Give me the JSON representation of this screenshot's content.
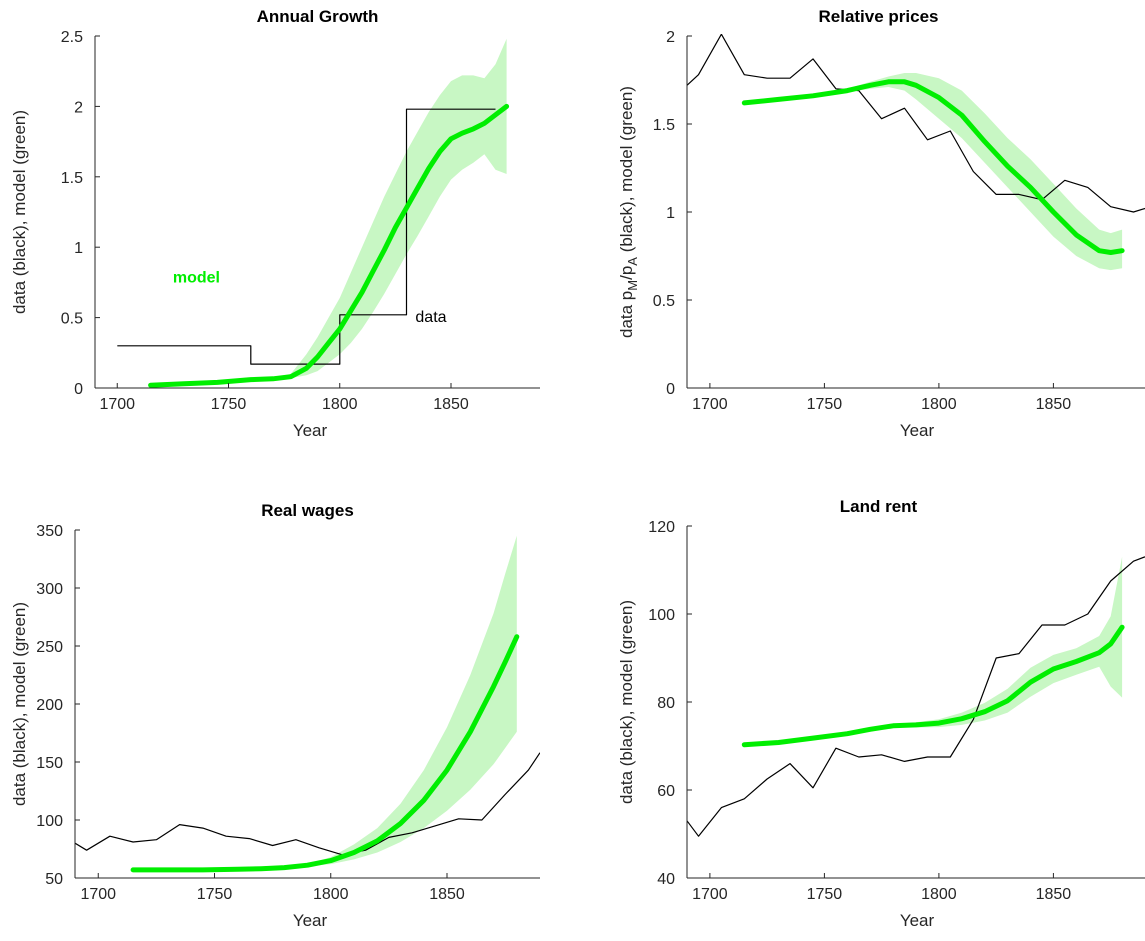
{
  "colors": {
    "model_line": "#00ee00",
    "model_band": "#c8f7c4",
    "data_line": "#000000",
    "axis": "#262626"
  },
  "chart_data": [
    {
      "type": "line",
      "title": "Annual Growth",
      "xlabel": "Year",
      "ylabel": "data (black), model (green)",
      "xlim": [
        1690,
        1890
      ],
      "ylim": [
        0,
        2.5
      ],
      "xticks": [
        1700,
        1750,
        1800,
        1850
      ],
      "xtick_labels": [
        "1700",
        "1750",
        "1800",
        "1850"
      ],
      "yticks": [
        0,
        0.5,
        1,
        1.5,
        2,
        2.5
      ],
      "ytick_labels": [
        "0",
        "0.5",
        "1",
        "1.5",
        "2",
        "2.5"
      ],
      "grid": false,
      "annotations": [
        {
          "text": "model",
          "x": 1725,
          "y": 0.75,
          "color": "#00ee00",
          "bold": true
        },
        {
          "text": "data",
          "x": 1834,
          "y": 0.47,
          "color": "#000000",
          "bold": false
        }
      ],
      "series": [
        {
          "name": "data",
          "style": "step",
          "x": [
            1700,
            1760,
            1760,
            1800,
            1800,
            1830,
            1830,
            1870
          ],
          "y": [
            0.3,
            0.3,
            0.17,
            0.17,
            0.52,
            0.52,
            1.98,
            1.98
          ]
        },
        {
          "name": "model",
          "style": "line",
          "x": [
            1715,
            1730,
            1745,
            1760,
            1770,
            1778,
            1785,
            1790,
            1795,
            1800,
            1805,
            1810,
            1815,
            1820,
            1825,
            1830,
            1835,
            1840,
            1845,
            1850,
            1855,
            1860,
            1865,
            1870,
            1875
          ],
          "y": [
            0.02,
            0.03,
            0.04,
            0.06,
            0.065,
            0.08,
            0.14,
            0.22,
            0.32,
            0.42,
            0.55,
            0.68,
            0.83,
            0.98,
            1.14,
            1.28,
            1.42,
            1.56,
            1.68,
            1.77,
            1.81,
            1.84,
            1.88,
            1.94,
            2.0
          ],
          "lower": [
            0.01,
            0.02,
            0.03,
            0.05,
            0.055,
            0.07,
            0.09,
            0.12,
            0.18,
            0.24,
            0.32,
            0.42,
            0.54,
            0.67,
            0.81,
            0.95,
            1.08,
            1.22,
            1.36,
            1.48,
            1.55,
            1.6,
            1.66,
            1.55,
            1.52
          ],
          "upper": [
            0.03,
            0.04,
            0.05,
            0.07,
            0.075,
            0.1,
            0.24,
            0.36,
            0.5,
            0.64,
            0.82,
            1.0,
            1.18,
            1.36,
            1.52,
            1.68,
            1.82,
            1.96,
            2.08,
            2.18,
            2.22,
            2.22,
            2.2,
            2.3,
            2.48
          ]
        }
      ]
    },
    {
      "type": "line",
      "title": "Relative prices",
      "xlabel": "Year",
      "ylabel": "data p_M/p_A (black), model (green)",
      "ylabel_parts": {
        "pre": "data p",
        "sub1": "M",
        "mid": "/p",
        "sub2": "A",
        "post": " (black), model (green)"
      },
      "xlim": [
        1690,
        1890
      ],
      "ylim": [
        0,
        2
      ],
      "xticks": [
        1700,
        1750,
        1800,
        1850
      ],
      "xtick_labels": [
        "1700",
        "1750",
        "1800",
        "1850"
      ],
      "yticks": [
        0,
        0.5,
        1,
        1.5,
        2
      ],
      "ytick_labels": [
        "0",
        "0.5",
        "1",
        "1.5",
        "2"
      ],
      "grid": false,
      "series": [
        {
          "name": "data",
          "style": "line",
          "x": [
            1690,
            1695,
            1705,
            1715,
            1725,
            1735,
            1745,
            1755,
            1765,
            1775,
            1785,
            1795,
            1805,
            1815,
            1825,
            1835,
            1845,
            1855,
            1865,
            1875,
            1885,
            1890
          ],
          "y": [
            1.72,
            1.78,
            2.01,
            1.78,
            1.76,
            1.76,
            1.87,
            1.7,
            1.69,
            1.53,
            1.59,
            1.41,
            1.46,
            1.23,
            1.1,
            1.1,
            1.07,
            1.18,
            1.14,
            1.03,
            1.0,
            1.02
          ]
        },
        {
          "name": "model",
          "style": "line",
          "x": [
            1715,
            1730,
            1745,
            1760,
            1770,
            1778,
            1785,
            1790,
            1800,
            1810,
            1820,
            1830,
            1840,
            1850,
            1860,
            1870,
            1875,
            1880
          ],
          "y": [
            1.62,
            1.64,
            1.66,
            1.69,
            1.72,
            1.74,
            1.74,
            1.72,
            1.65,
            1.55,
            1.4,
            1.26,
            1.14,
            1.0,
            0.87,
            0.78,
            0.77,
            0.78
          ],
          "lower": [
            1.61,
            1.63,
            1.65,
            1.68,
            1.7,
            1.71,
            1.69,
            1.64,
            1.53,
            1.42,
            1.28,
            1.14,
            1.0,
            0.86,
            0.75,
            0.68,
            0.67,
            0.68
          ],
          "upper": [
            1.63,
            1.65,
            1.67,
            1.7,
            1.74,
            1.77,
            1.79,
            1.79,
            1.76,
            1.69,
            1.56,
            1.42,
            1.3,
            1.16,
            1.02,
            0.9,
            0.88,
            0.9
          ]
        }
      ]
    },
    {
      "type": "line",
      "title": "Real wages",
      "xlabel": "Year",
      "ylabel": "data (black), model (green)",
      "xlim": [
        1690,
        1890
      ],
      "ylim": [
        50,
        350
      ],
      "xticks": [
        1700,
        1750,
        1800,
        1850
      ],
      "xtick_labels": [
        "1700",
        "1750",
        "1800",
        "1850"
      ],
      "yticks": [
        50,
        100,
        150,
        200,
        250,
        300,
        350
      ],
      "ytick_labels": [
        "50",
        "100",
        "150",
        "200",
        "250",
        "300",
        "350"
      ],
      "grid": false,
      "series": [
        {
          "name": "data",
          "style": "line",
          "x": [
            1690,
            1695,
            1705,
            1715,
            1725,
            1735,
            1745,
            1755,
            1765,
            1775,
            1785,
            1795,
            1805,
            1815,
            1825,
            1835,
            1845,
            1855,
            1865,
            1875,
            1885,
            1890
          ],
          "y": [
            80,
            74,
            86,
            81,
            83,
            96,
            93,
            86,
            84,
            78,
            83,
            76,
            70,
            74,
            85,
            89,
            95,
            101,
            100,
            122,
            143,
            158
          ]
        },
        {
          "name": "model",
          "style": "line",
          "x": [
            1715,
            1730,
            1745,
            1760,
            1770,
            1780,
            1790,
            1800,
            1810,
            1820,
            1830,
            1840,
            1850,
            1860,
            1870,
            1875,
            1880
          ],
          "y": [
            57,
            57,
            57,
            57.5,
            58,
            59,
            61,
            65,
            72,
            82,
            97,
            117,
            143,
            176,
            215,
            236,
            258
          ],
          "lower": [
            57,
            57,
            57,
            57.5,
            58,
            58.5,
            60,
            62,
            66,
            72,
            81,
            93,
            108,
            126,
            148,
            162,
            176
          ],
          "upper": [
            57,
            57,
            57,
            57.5,
            58,
            59.5,
            62,
            68,
            79,
            93,
            114,
            143,
            180,
            225,
            278,
            312,
            345
          ]
        }
      ]
    },
    {
      "type": "line",
      "title": "Land rent",
      "xlabel": "Year",
      "ylabel": "data (black), model (green)",
      "xlim": [
        1690,
        1890
      ],
      "ylim": [
        40,
        120
      ],
      "xticks": [
        1700,
        1750,
        1800,
        1850
      ],
      "xtick_labels": [
        "1700",
        "1750",
        "1800",
        "1850"
      ],
      "yticks": [
        40,
        60,
        80,
        100,
        120
      ],
      "ytick_labels": [
        "40",
        "60",
        "80",
        "100",
        "120"
      ],
      "grid": false,
      "series": [
        {
          "name": "data",
          "style": "line",
          "x": [
            1690,
            1695,
            1705,
            1715,
            1725,
            1735,
            1745,
            1755,
            1765,
            1775,
            1785,
            1795,
            1805,
            1815,
            1825,
            1835,
            1845,
            1855,
            1865,
            1875,
            1885,
            1890
          ],
          "y": [
            53,
            49.5,
            56,
            58,
            62.5,
            66,
            60.5,
            69.5,
            67.5,
            68,
            66.5,
            67.5,
            67.5,
            76,
            90,
            91,
            97.5,
            97.5,
            100,
            107.5,
            112,
            113
          ]
        },
        {
          "name": "model",
          "style": "line",
          "x": [
            1715,
            1730,
            1745,
            1760,
            1770,
            1780,
            1790,
            1800,
            1810,
            1820,
            1830,
            1840,
            1850,
            1860,
            1870,
            1875,
            1880
          ],
          "y": [
            70.3,
            70.8,
            71.8,
            72.8,
            73.8,
            74.6,
            74.8,
            75.2,
            76.2,
            77.8,
            80.3,
            84.5,
            87.5,
            89.2,
            91.2,
            93.2,
            97
          ],
          "lower": [
            70,
            70.5,
            71.5,
            72.5,
            73.5,
            74.2,
            74.2,
            74.3,
            74.8,
            75.8,
            77.6,
            81.2,
            84.3,
            86.2,
            88.0,
            83.5,
            81
          ],
          "upper": [
            70.6,
            71.1,
            72.1,
            73.1,
            74.1,
            75.0,
            75.4,
            76.1,
            77.6,
            79.8,
            83.0,
            87.8,
            90.7,
            92.2,
            95.0,
            99.5,
            113
          ]
        }
      ]
    }
  ]
}
